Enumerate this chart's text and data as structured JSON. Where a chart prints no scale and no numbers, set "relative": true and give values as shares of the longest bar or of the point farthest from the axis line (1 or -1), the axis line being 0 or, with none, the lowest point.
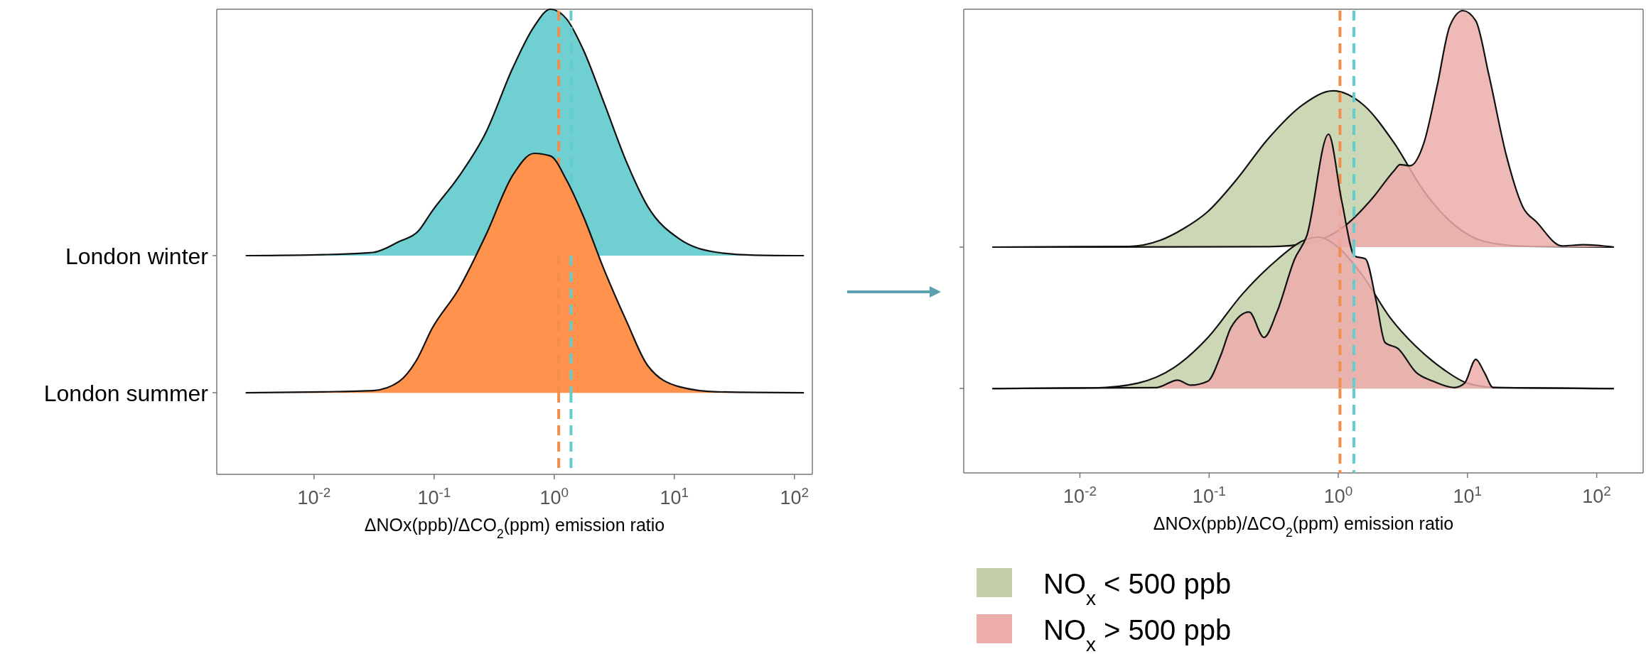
{
  "chart_data": [
    {
      "type": "area",
      "relative": true,
      "log": "x",
      "ylabel": "London winter",
      "xlim": [
        0.00155,
        141
      ],
      "tick_labels": false,
      "grid": false,
      "legend": false,
      "ref_lines": [
        {
          "axis": "x",
          "value": 1.09,
          "color": "#f28e4b",
          "line_style": "dashed"
        },
        {
          "axis": "x",
          "value": 1.38,
          "color": "#62cdd0",
          "line_style": "dashed"
        }
      ],
      "series": [
        {
          "color": "#6fcfd1",
          "x": [
            0.0027,
            0.012,
            0.031,
            0.051,
            0.074,
            0.096,
            0.16,
            0.27,
            0.45,
            0.68,
            0.93,
            1.27,
            1.73,
            2.6,
            4.0,
            6.0,
            11,
            23,
            47,
            120
          ],
          "values": [
            0,
            0.004,
            0.013,
            0.057,
            0.1,
            0.18,
            0.32,
            0.5,
            0.76,
            0.93,
            1.0,
            0.96,
            0.84,
            0.62,
            0.38,
            0.2,
            0.068,
            0.013,
            0.002,
            0
          ]
        }
      ]
    },
    {
      "type": "area",
      "relative": true,
      "log": "x",
      "ylabel": "London summer",
      "xlabel": "ΔNOx(ppb)/ΔCO$_{2}$(ppm) emission ratio",
      "xlim": [
        0.00155,
        141
      ],
      "xticks": [
        {
          "value": 0.01,
          "label": "10$^{-2}$"
        },
        {
          "value": 0.1,
          "label": "10$^{-1}$"
        },
        {
          "value": 1,
          "label": "10$^{0}$"
        },
        {
          "value": 10,
          "label": "10$^{1}$"
        },
        {
          "value": 100,
          "label": "10$^{2}$"
        }
      ],
      "tick_labels": "x",
      "grid": false,
      "legend": false,
      "ref_lines": [
        {
          "axis": "x",
          "value": 1.09,
          "color": "#f28e4b",
          "line_style": "dashed"
        },
        {
          "axis": "x",
          "value": 1.38,
          "color": "#62cdd0",
          "line_style": "dashed"
        }
      ],
      "series": [
        {
          "color": "#ff924c",
          "x": [
            0.0027,
            0.012,
            0.031,
            0.051,
            0.071,
            0.096,
            0.16,
            0.27,
            0.45,
            0.68,
            0.93,
            1.27,
            1.73,
            2.6,
            4.0,
            6.0,
            11,
            23,
            120
          ],
          "values": [
            0.254,
            0.257,
            0.261,
            0.289,
            0.354,
            0.454,
            0.577,
            0.746,
            0.931,
            1.0,
            0.992,
            0.916,
            0.808,
            0.638,
            0.477,
            0.339,
            0.273,
            0.257,
            0.254
          ]
        }
      ]
    },
    {
      "type": "area",
      "relative": true,
      "log": "x",
      "xlim": [
        0.00126,
        229
      ],
      "tick_labels": false,
      "grid": false,
      "legend": false,
      "ref_lines": [
        {
          "axis": "x",
          "value": 1.03,
          "color": "#f28e4b",
          "line_style": "dashed"
        },
        {
          "axis": "x",
          "value": 1.32,
          "color": "#62cdd0",
          "line_style": "dashed"
        }
      ],
      "series": [
        {
          "color": "#c3d0a8",
          "x": [
            0.0021,
            0.024,
            0.042,
            0.062,
            0.098,
            0.16,
            0.29,
            0.53,
            0.91,
            1.56,
            2.7,
            4.6,
            7.9,
            13.5,
            29,
            136
          ],
          "values": [
            0,
            0.003,
            0.029,
            0.075,
            0.151,
            0.28,
            0.462,
            0.602,
            0.661,
            0.602,
            0.441,
            0.237,
            0.094,
            0.024,
            0.003,
            0
          ]
        },
        {
          "color": "#ecadab",
          "x": [
            0.0021,
            0.29,
            0.62,
            1.15,
            1.82,
            2.7,
            3.0,
            3.6,
            4.6,
            5.8,
            7.3,
            9.2,
            11.6,
            14.6,
            20,
            27,
            34,
            54,
            79,
            136
          ],
          "values": [
            0,
            0.002,
            0.02,
            0.094,
            0.204,
            0.323,
            0.349,
            0.344,
            0.441,
            0.677,
            0.935,
            1.0,
            0.957,
            0.731,
            0.387,
            0.167,
            0.108,
            0.005,
            0.01,
            0
          ]
        }
      ]
    },
    {
      "type": "area",
      "relative": true,
      "log": "x",
      "xlabel": "ΔNOx(ppb)/ΔCO$_{2}$(ppm) emission ratio",
      "xlim": [
        0.00126,
        229
      ],
      "xticks": [
        {
          "value": 0.01,
          "label": "10$^{-2}$"
        },
        {
          "value": 0.1,
          "label": "10$^{-1}$"
        },
        {
          "value": 1,
          "label": "10$^{0}$"
        },
        {
          "value": 10,
          "label": "10$^{1}$"
        },
        {
          "value": 100,
          "label": "10$^{2}$"
        }
      ],
      "tick_labels": "x",
      "grid": false,
      "legend": "bottom",
      "ref_lines": [
        {
          "axis": "x",
          "value": 1.03,
          "color": "#f28e4b",
          "line_style": "dashed"
        },
        {
          "axis": "x",
          "value": 1.32,
          "color": "#62cdd0",
          "line_style": "dashed"
        }
      ],
      "series": [
        {
          "name": "NO$_{x}$ < 500 ppb",
          "color": "#c3d0a8",
          "x": [
            0.0021,
            0.013,
            0.028,
            0.053,
            0.098,
            0.18,
            0.335,
            0.53,
            0.7,
            1.0,
            1.56,
            2.5,
            4.0,
            6.3,
            10,
            17,
            136
          ],
          "values": [
            0.249,
            0.251,
            0.265,
            0.31,
            0.4,
            0.527,
            0.629,
            0.685,
            0.696,
            0.666,
            0.58,
            0.46,
            0.373,
            0.31,
            0.265,
            0.252,
            0.249
          ]
        },
        {
          "name": "NO$_{x}$ > 500 ppb",
          "color": "#ecadab",
          "x": [
            0.0021,
            0.039,
            0.057,
            0.072,
            0.098,
            0.123,
            0.148,
            0.204,
            0.266,
            0.335,
            0.46,
            0.57,
            0.84,
            1.06,
            1.34,
            1.62,
            1.97,
            2.3,
            2.9,
            4.0,
            5.4,
            7.9,
            9.5,
            11.6,
            13.5,
            15.8,
            136
          ],
          "values": [
            0.249,
            0.252,
            0.274,
            0.259,
            0.271,
            0.347,
            0.43,
            0.475,
            0.4,
            0.475,
            0.632,
            0.7,
            1.0,
            0.805,
            0.64,
            0.632,
            0.505,
            0.385,
            0.367,
            0.297,
            0.271,
            0.252,
            0.265,
            0.335,
            0.297,
            0.252,
            0.249
          ]
        }
      ]
    }
  ]
}
